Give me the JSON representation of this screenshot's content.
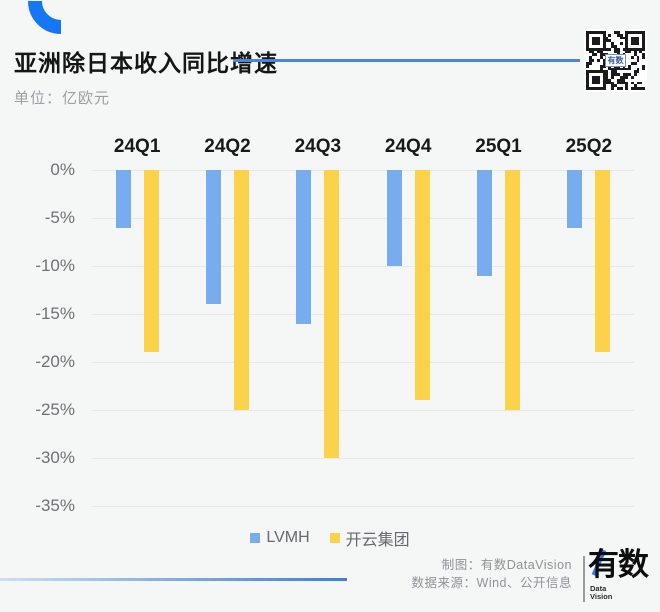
{
  "header": {
    "title": "亚洲除日本收入同比增速",
    "unit_label": "单位：亿欧元",
    "qr_label": "有数"
  },
  "chart_data": {
    "type": "bar",
    "title": "亚洲除日本收入同比增速",
    "unit": "亿欧元",
    "categories": [
      "24Q1",
      "24Q2",
      "24Q3",
      "24Q4",
      "25Q1",
      "25Q2"
    ],
    "series": [
      {
        "name": "LVMH",
        "slug": "lvmh",
        "color": "#77ADEF",
        "values": [
          -6,
          -14,
          -16,
          -10,
          -11,
          -6
        ]
      },
      {
        "name": "开云集团",
        "slug": "kering",
        "color": "#FBD24A",
        "values": [
          -19,
          -25,
          -30,
          -24,
          -25,
          -19
        ]
      }
    ],
    "ylim": [
      -35,
      0
    ],
    "ytick_step": 5,
    "ytick_labels": [
      "0%",
      "-5%",
      "-10%",
      "-15%",
      "-20%",
      "-25%",
      "-30%",
      "-35%"
    ],
    "grid": true,
    "legend_position": "bottom-center"
  },
  "footer": {
    "credit": "制图：有数DataVision",
    "source": "数据来源：Wind、公开信息",
    "logo_text": "有数",
    "logo_sub": "Data\nVision"
  },
  "colors": {
    "accent_blue": "#1677F5",
    "title_rule_blue": "#4A86DD",
    "lvmh_bar": "#77ADEF",
    "kering_bar": "#FBD24A"
  }
}
